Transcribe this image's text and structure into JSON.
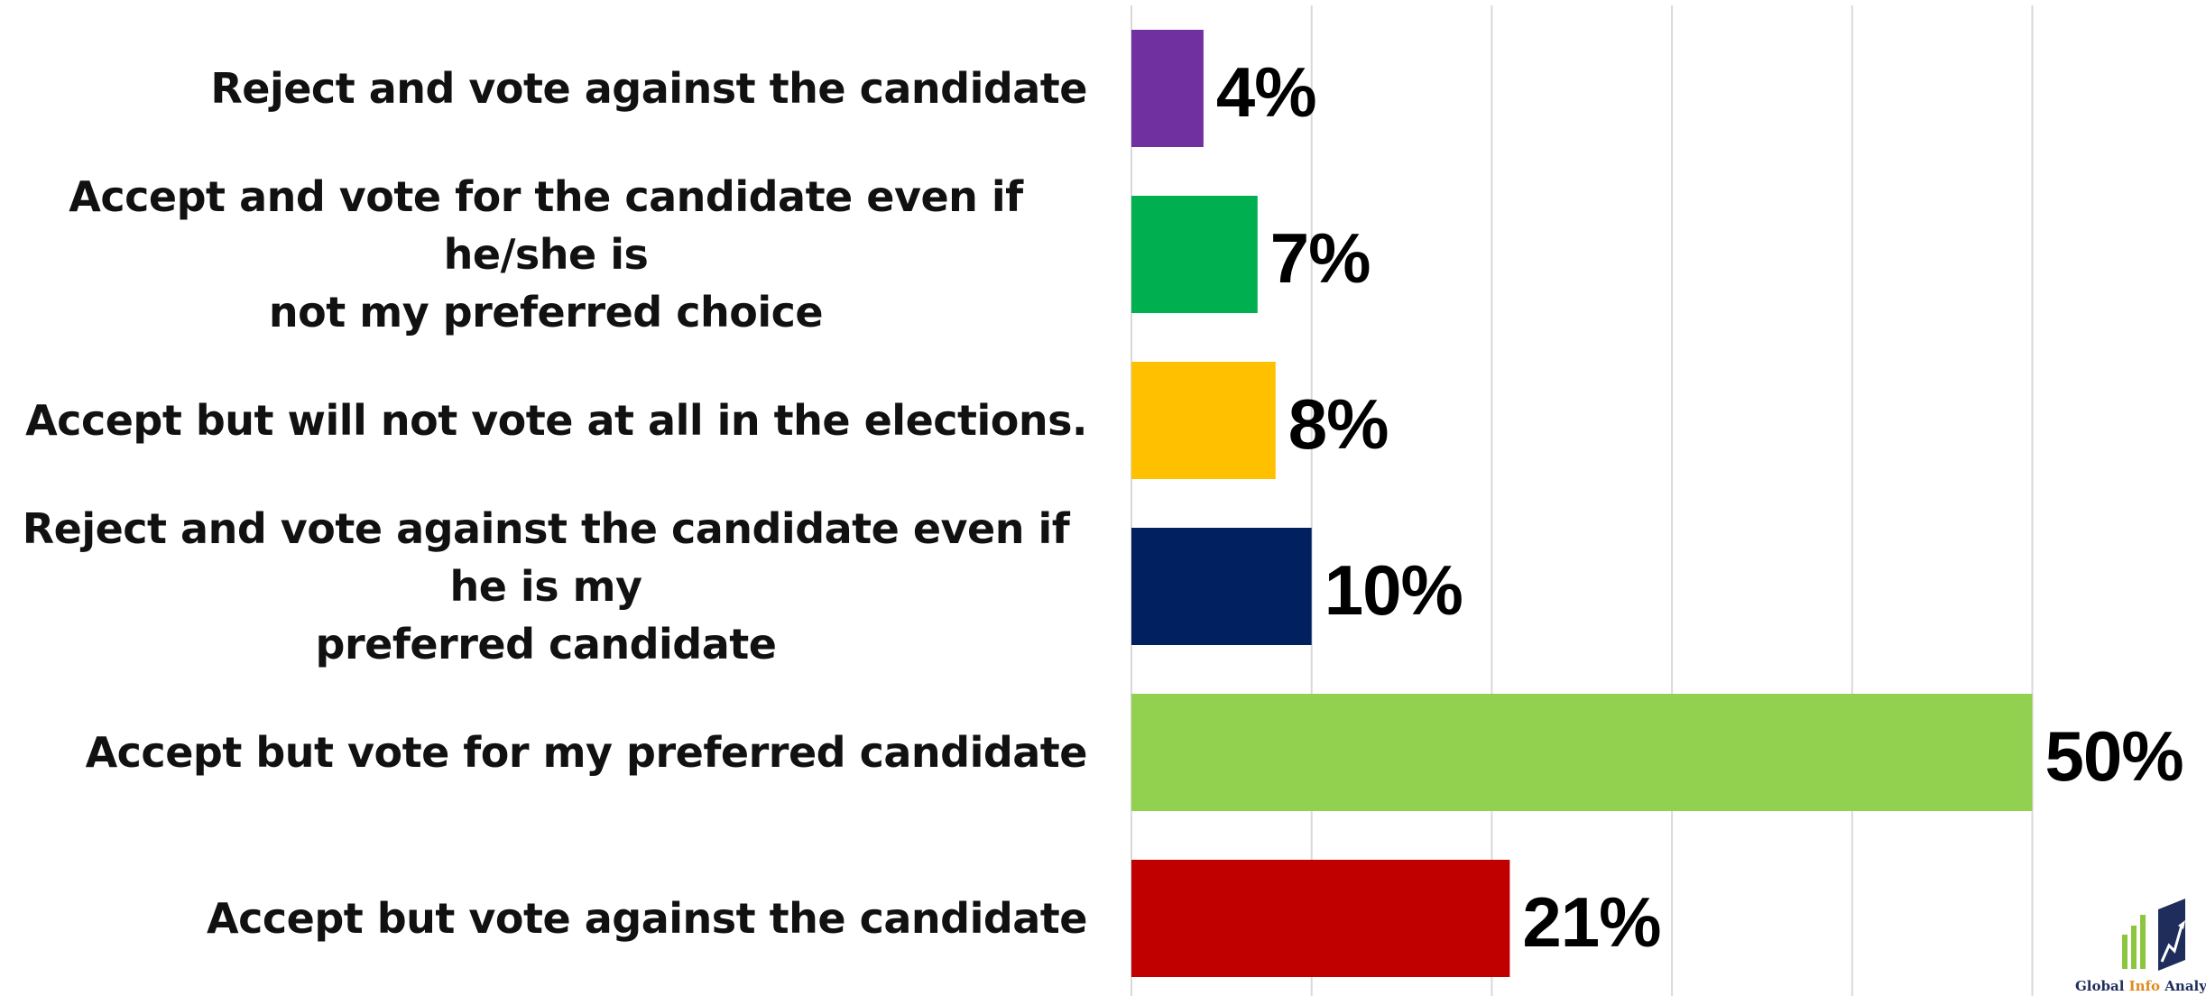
{
  "chart_data": {
    "type": "bar",
    "orientation": "horizontal",
    "title": "",
    "xlabel": "",
    "ylabel": "",
    "xlim": [
      0,
      50
    ],
    "grid": true,
    "legend": "none",
    "value_suffix": "%",
    "bars": [
      {
        "label": "Reject and vote against the candidate",
        "lines": [
          "Reject and vote against the candidate"
        ],
        "value": 4,
        "value_label": "4%",
        "color": "#7030a0"
      },
      {
        "label": "Accept and vote for the candidate  even if he/she is not my preferred choice",
        "lines": [
          "Accept and vote for the candidate  even if he/she is",
          "not my preferred choice"
        ],
        "value": 7,
        "value_label": "7%",
        "color": "#00b050"
      },
      {
        "label": "Accept but will not vote at all in the elections.",
        "lines": [
          "Accept but will not vote at all in the elections."
        ],
        "value": 8,
        "value_label": "8%",
        "color": "#ffc000"
      },
      {
        "label": "Reject and vote against the candidate even if he is my preferred candidate",
        "lines": [
          "Reject and vote against the candidate even if he is my",
          "preferred candidate"
        ],
        "value": 10,
        "value_label": "10%",
        "color": "#002060"
      },
      {
        "label": "Accept but vote for my preferred candidate",
        "lines": [
          "Accept but vote for my preferred candidate"
        ],
        "value": 50,
        "value_label": "50%",
        "color": "#92d050"
      },
      {
        "label": "Accept but vote against the candidate",
        "lines": [
          "Accept but vote against the candidate"
        ],
        "value": 21,
        "value_label": "21%",
        "color": "#c00000"
      }
    ]
  },
  "logo": {
    "text_main_1": "Global",
    "text_accent": "Info",
    "text_main_2": "Analy",
    "colors": {
      "navy": "#1f2d5c",
      "green": "#8cc63f",
      "orange": "#e08a1e"
    }
  }
}
